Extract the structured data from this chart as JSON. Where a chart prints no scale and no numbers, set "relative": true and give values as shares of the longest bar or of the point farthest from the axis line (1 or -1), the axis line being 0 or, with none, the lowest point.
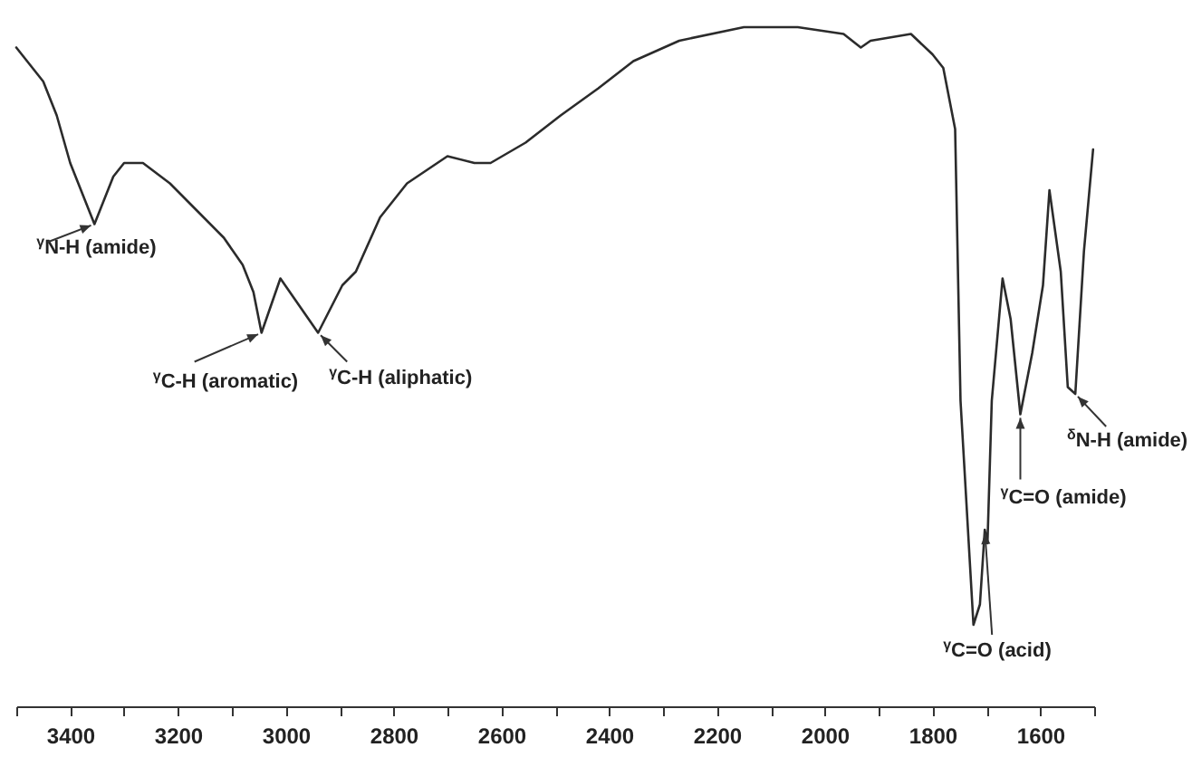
{
  "chart_data": {
    "type": "line",
    "relative": true,
    "grid": false,
    "x": [
      3500,
      3450,
      3425,
      3400,
      3385,
      3355,
      3320,
      3300,
      3265,
      3215,
      3165,
      3115,
      3080,
      3060,
      3045,
      3010,
      2940,
      2895,
      2870,
      2825,
      2775,
      2700,
      2650,
      2620,
      2555,
      2490,
      2420,
      2355,
      2270,
      2150,
      2050,
      1965,
      1933,
      1915,
      1840,
      1800,
      1780,
      1758,
      1748,
      1724,
      1712,
      1703,
      1698,
      1690,
      1670,
      1655,
      1637,
      1615,
      1595,
      1583,
      1562,
      1549,
      1535,
      1519,
      1502
    ],
    "series": [
      {
        "color": "#2b2b2b",
        "values": [
          0.97,
          0.92,
          0.87,
          0.8,
          0.77,
          0.71,
          0.78,
          0.8,
          0.8,
          0.77,
          0.73,
          0.69,
          0.65,
          0.61,
          0.55,
          0.63,
          0.55,
          0.62,
          0.64,
          0.72,
          0.77,
          0.81,
          0.8,
          0.8,
          0.83,
          0.87,
          0.91,
          0.95,
          0.98,
          1.0,
          1.0,
          0.99,
          0.97,
          0.98,
          0.99,
          0.96,
          0.94,
          0.85,
          0.45,
          0.12,
          0.15,
          0.26,
          0.24,
          0.45,
          0.63,
          0.57,
          0.43,
          0.52,
          0.62,
          0.76,
          0.64,
          0.47,
          0.46,
          0.67,
          0.82
        ]
      }
    ],
    "xlim": [
      3500,
      1500
    ],
    "xticks": [
      {
        "value": 3500,
        "label": null
      },
      3400,
      {
        "value": 3300,
        "label": null
      },
      3200,
      {
        "value": 3100,
        "label": null
      },
      3000,
      {
        "value": 2900,
        "label": null
      },
      2800,
      {
        "value": 2700,
        "label": null
      },
      2600,
      {
        "value": 2500,
        "label": null
      },
      2400,
      {
        "value": 2300,
        "label": null
      },
      2200,
      {
        "value": 2100,
        "label": null
      },
      2000,
      {
        "value": 1900,
        "label": null
      },
      1800,
      {
        "value": 1700,
        "label": null
      },
      1600,
      {
        "value": 1500,
        "label": null
      }
    ],
    "annotations": [
      {
        "text": "$^{γ}$N-H (amide)",
        "x": 3355,
        "y": 0.71
      },
      {
        "text": "$^{γ}$C-H (aromatic)",
        "x": 3045,
        "y": 0.55
      },
      {
        "text": "$^{γ}$C-H (aliphatic)",
        "x": 2940,
        "y": 0.55
      },
      {
        "text": "$^{γ}$C=O (acid)",
        "x": 1703,
        "y": 0.26
      },
      {
        "text": "$^{γ}$C=O (amide)",
        "x": 1637,
        "y": 0.43
      },
      {
        "text": "$^{δ}$N-H (amide)",
        "x": 1535,
        "y": 0.46
      }
    ]
  }
}
